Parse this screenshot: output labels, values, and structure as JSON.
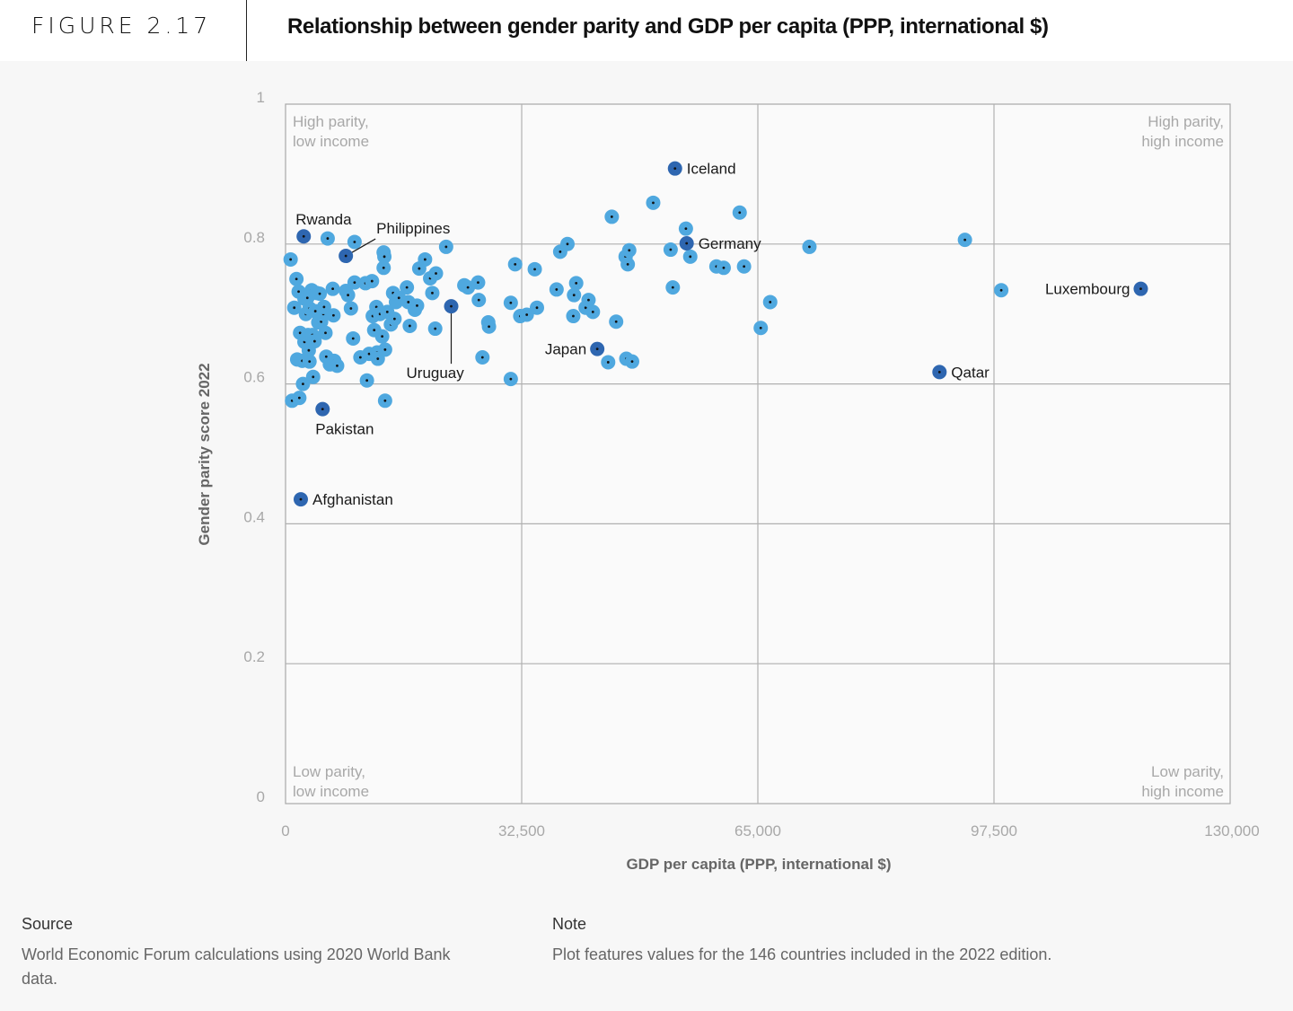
{
  "header": {
    "figure_label": "FIGURE 2.17",
    "title": "Relationship between gender parity and GDP per capita (PPP, international $)"
  },
  "footer": {
    "source_heading": "Source",
    "source_text": "World Economic Forum calculations using 2020 World Bank data.",
    "note_heading": "Note",
    "note_text": "Plot features values for the 146 countries included in the 2022 edition."
  },
  "chart_data": {
    "type": "scatter",
    "title": "Relationship between gender parity and GDP per capita (PPP, international $)",
    "xlabel": "GDP per capita (PPP, international $)",
    "ylabel": "Gender parity score 2022",
    "xlim": [
      0,
      130000
    ],
    "ylim": [
      0,
      1
    ],
    "xticks": [
      0,
      32500,
      65000,
      97500,
      130000
    ],
    "xtick_labels": [
      "0",
      "32,500",
      "65,000",
      "97,500",
      "130,000"
    ],
    "yticks": [
      0,
      0.2,
      0.4,
      0.6,
      0.8,
      1
    ],
    "ytick_labels": [
      "0",
      "0.2",
      "0.4",
      "0.6",
      "0.8",
      "1"
    ],
    "grid": true,
    "colors": {
      "default": "#4fa8df",
      "highlight": "#2e66b0",
      "center_dot": "#111111"
    },
    "quadrant_labels": {
      "top_left": [
        "High parity,",
        "low income"
      ],
      "top_right": [
        "High parity,",
        "high income"
      ],
      "bottom_left": [
        "Low parity,",
        "low income"
      ],
      "bottom_right": [
        "Low parity,",
        "high income"
      ]
    },
    "highlighted": [
      {
        "name": "Iceland",
        "x": 53600,
        "y": 0.908,
        "label_pos": "right"
      },
      {
        "name": "Rwanda",
        "x": 2500,
        "y": 0.811,
        "label_pos": "above"
      },
      {
        "name": "Philippines",
        "x": 8300,
        "y": 0.783,
        "label_pos": "leader-up-right"
      },
      {
        "name": "Germany",
        "x": 55200,
        "y": 0.801,
        "label_pos": "right"
      },
      {
        "name": "Luxembourg",
        "x": 117700,
        "y": 0.736,
        "label_pos": "left"
      },
      {
        "name": "Uruguay",
        "x": 22800,
        "y": 0.711,
        "label_pos": "leader-down"
      },
      {
        "name": "Japan",
        "x": 42900,
        "y": 0.65,
        "label_pos": "left"
      },
      {
        "name": "Qatar",
        "x": 90000,
        "y": 0.617,
        "label_pos": "right"
      },
      {
        "name": "Pakistan",
        "x": 5100,
        "y": 0.564,
        "label_pos": "below"
      },
      {
        "name": "Afghanistan",
        "x": 2100,
        "y": 0.435,
        "label_pos": "right"
      }
    ],
    "points": [
      [
        700,
        0.778
      ],
      [
        1500,
        0.75
      ],
      [
        1200,
        0.709
      ],
      [
        1800,
        0.732
      ],
      [
        2000,
        0.673
      ],
      [
        1600,
        0.635
      ],
      [
        2300,
        0.633
      ],
      [
        900,
        0.576
      ],
      [
        1900,
        0.58
      ],
      [
        2400,
        0.6
      ],
      [
        2600,
        0.66
      ],
      [
        2800,
        0.7
      ],
      [
        2600,
        0.722
      ],
      [
        3000,
        0.723
      ],
      [
        3300,
        0.708
      ],
      [
        3200,
        0.648
      ],
      [
        3100,
        0.67
      ],
      [
        3600,
        0.734
      ],
      [
        3700,
        0.67
      ],
      [
        3300,
        0.632
      ],
      [
        3800,
        0.61
      ],
      [
        4000,
        0.661
      ],
      [
        4100,
        0.704
      ],
      [
        4300,
        0.73
      ],
      [
        4500,
        0.688
      ],
      [
        4700,
        0.729
      ],
      [
        4900,
        0.689
      ],
      [
        5200,
        0.7
      ],
      [
        5300,
        0.71
      ],
      [
        5500,
        0.673
      ],
      [
        5600,
        0.639
      ],
      [
        5800,
        0.808
      ],
      [
        6100,
        0.628
      ],
      [
        6500,
        0.736
      ],
      [
        6600,
        0.698
      ],
      [
        6700,
        0.633
      ],
      [
        7100,
        0.626
      ],
      [
        8300,
        0.733
      ],
      [
        8600,
        0.727
      ],
      [
        9000,
        0.708
      ],
      [
        9300,
        0.665
      ],
      [
        9500,
        0.803
      ],
      [
        9500,
        0.745
      ],
      [
        10300,
        0.638
      ],
      [
        11000,
        0.744
      ],
      [
        11200,
        0.605
      ],
      [
        11500,
        0.643
      ],
      [
        11900,
        0.747
      ],
      [
        12000,
        0.697
      ],
      [
        12200,
        0.677
      ],
      [
        12500,
        0.71
      ],
      [
        12600,
        0.645
      ],
      [
        12700,
        0.636
      ],
      [
        13000,
        0.7
      ],
      [
        13300,
        0.668
      ],
      [
        13500,
        0.788
      ],
      [
        13600,
        0.782
      ],
      [
        13500,
        0.766
      ],
      [
        13700,
        0.649
      ],
      [
        13700,
        0.576
      ],
      [
        14000,
        0.703
      ],
      [
        14500,
        0.685
      ],
      [
        14800,
        0.73
      ],
      [
        15000,
        0.693
      ],
      [
        15200,
        0.717
      ],
      [
        15600,
        0.723
      ],
      [
        16700,
        0.738
      ],
      [
        16900,
        0.717
      ],
      [
        17100,
        0.683
      ],
      [
        17800,
        0.706
      ],
      [
        18100,
        0.712
      ],
      [
        18400,
        0.765
      ],
      [
        19200,
        0.778
      ],
      [
        19900,
        0.751
      ],
      [
        20200,
        0.73
      ],
      [
        20700,
        0.758
      ],
      [
        20600,
        0.679
      ],
      [
        22100,
        0.796
      ],
      [
        24600,
        0.741
      ],
      [
        25100,
        0.738
      ],
      [
        26500,
        0.745
      ],
      [
        26600,
        0.72
      ],
      [
        27100,
        0.638
      ],
      [
        27900,
        0.688
      ],
      [
        28000,
        0.682
      ],
      [
        31000,
        0.716
      ],
      [
        31000,
        0.607
      ],
      [
        31600,
        0.771
      ],
      [
        32300,
        0.697
      ],
      [
        33200,
        0.699
      ],
      [
        34300,
        0.764
      ],
      [
        34600,
        0.709
      ],
      [
        37300,
        0.735
      ],
      [
        37800,
        0.789
      ],
      [
        38800,
        0.8
      ],
      [
        39600,
        0.697
      ],
      [
        39700,
        0.727
      ],
      [
        40000,
        0.744
      ],
      [
        41300,
        0.709
      ],
      [
        41700,
        0.72
      ],
      [
        42300,
        0.703
      ],
      [
        44400,
        0.631
      ],
      [
        44900,
        0.839
      ],
      [
        45500,
        0.689
      ],
      [
        46800,
        0.782
      ],
      [
        47100,
        0.771
      ],
      [
        47300,
        0.791
      ],
      [
        46900,
        0.636
      ],
      [
        47700,
        0.632
      ],
      [
        50600,
        0.859
      ],
      [
        53000,
        0.792
      ],
      [
        53300,
        0.738
      ],
      [
        55100,
        0.822
      ],
      [
        55700,
        0.782
      ],
      [
        59300,
        0.768
      ],
      [
        60300,
        0.766
      ],
      [
        62500,
        0.845
      ],
      [
        63100,
        0.768
      ],
      [
        65400,
        0.68
      ],
      [
        66700,
        0.717
      ],
      [
        72100,
        0.796
      ],
      [
        93500,
        0.806
      ],
      [
        98500,
        0.734
      ]
    ]
  }
}
